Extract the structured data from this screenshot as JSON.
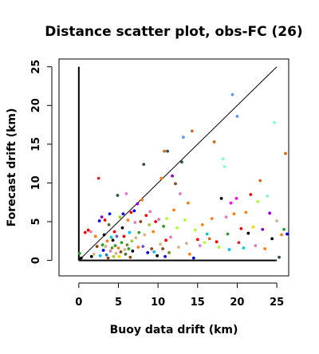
{
  "chart_data": {
    "type": "scatter",
    "title": "Distance scatter plot, obs-FC (26)",
    "xlabel": "Buoy data drift (km)",
    "ylabel": "Forecast drift (km)",
    "xlim": [
      -2.5,
      26.5
    ],
    "ylim": [
      -2,
      26
    ],
    "x_ticks": [
      "0",
      "5",
      "10",
      "15",
      "20",
      "25"
    ],
    "y_ticks": [
      "0",
      "5",
      "10",
      "15",
      "20",
      "25"
    ],
    "x_tick_values": [
      0,
      5,
      10,
      15,
      20,
      25
    ],
    "y_tick_values": [
      0,
      5,
      10,
      15,
      20,
      25
    ],
    "grid": false,
    "reference_lines": [
      {
        "name": "1:1 line",
        "x": [
          0,
          25
        ],
        "y": [
          0,
          25
        ],
        "color": "#000000"
      },
      {
        "name": "y axis",
        "x": [
          0,
          0
        ],
        "y": [
          0,
          25
        ],
        "color": "#000000"
      },
      {
        "name": "x axis",
        "x": [
          0,
          25
        ],
        "y": [
          0,
          0
        ],
        "color": "#000000"
      }
    ],
    "points": [
      {
        "x": 0.1,
        "y": 0.9,
        "color": "#2ca02c"
      },
      {
        "x": 0.3,
        "y": 0.3,
        "color": "#000000"
      },
      {
        "x": 0.8,
        "y": 3.6,
        "color": "#ff0000"
      },
      {
        "x": 1.2,
        "y": 3.9,
        "color": "#ff0000"
      },
      {
        "x": 1.5,
        "y": 3.7,
        "color": "#e377c2"
      },
      {
        "x": 1.6,
        "y": 0.5,
        "color": "#000000"
      },
      {
        "x": 1.9,
        "y": 0.8,
        "color": "#d2b48c"
      },
      {
        "x": 2.1,
        "y": 3.1,
        "color": "#ff7f0e"
      },
      {
        "x": 2.3,
        "y": 1.8,
        "color": "#8b4513"
      },
      {
        "x": 2.5,
        "y": 10.6,
        "color": "#d62728"
      },
      {
        "x": 2.6,
        "y": 5.1,
        "color": "#0000ff"
      },
      {
        "x": 2.7,
        "y": 0.6,
        "color": "#00bfff"
      },
      {
        "x": 2.9,
        "y": 5.6,
        "color": "#9400d3"
      },
      {
        "x": 3.0,
        "y": 2.0,
        "color": "#2ca02c"
      },
      {
        "x": 3.1,
        "y": 1.3,
        "color": "#0000ff"
      },
      {
        "x": 3.2,
        "y": 3.3,
        "color": "#000000"
      },
      {
        "x": 3.3,
        "y": 5.2,
        "color": "#ff0000"
      },
      {
        "x": 3.4,
        "y": 1.8,
        "color": "#d2b48c"
      },
      {
        "x": 3.5,
        "y": 0.7,
        "color": "#1f77b4"
      },
      {
        "x": 3.6,
        "y": 2.5,
        "color": "#ff7f0e"
      },
      {
        "x": 3.7,
        "y": 0.3,
        "color": "#8b4513"
      },
      {
        "x": 3.8,
        "y": 4.6,
        "color": "#556b2f"
      },
      {
        "x": 3.9,
        "y": 6.0,
        "color": "#0000ff"
      },
      {
        "x": 4.0,
        "y": 1.2,
        "color": "#e377c2"
      },
      {
        "x": 4.1,
        "y": 3.0,
        "color": "#00ced1"
      },
      {
        "x": 4.2,
        "y": 1.6,
        "color": "#6b8e23"
      },
      {
        "x": 4.3,
        "y": 2.6,
        "color": "#000000"
      },
      {
        "x": 4.4,
        "y": 0.5,
        "color": "#9acd32"
      },
      {
        "x": 4.5,
        "y": 3.7,
        "color": "#ff0000"
      },
      {
        "x": 4.6,
        "y": 1.9,
        "color": "#2ca02c"
      },
      {
        "x": 4.7,
        "y": 0.9,
        "color": "#d2b48c"
      },
      {
        "x": 4.8,
        "y": 3.1,
        "color": "#6a5acd"
      },
      {
        "x": 4.9,
        "y": 8.4,
        "color": "#2f4f4f"
      },
      {
        "x": 5.0,
        "y": 1.6,
        "color": "#ff7f0e"
      },
      {
        "x": 5.1,
        "y": 0.5,
        "color": "#ffd700"
      },
      {
        "x": 5.2,
        "y": 5.6,
        "color": "#9acd32"
      },
      {
        "x": 5.3,
        "y": 1.1,
        "color": "#8b4513"
      },
      {
        "x": 5.4,
        "y": 2.3,
        "color": "#2ca02c"
      },
      {
        "x": 5.5,
        "y": 4.2,
        "color": "#000000"
      },
      {
        "x": 5.6,
        "y": 6.0,
        "color": "#0000ff"
      },
      {
        "x": 5.7,
        "y": 3.1,
        "color": "#ff0000"
      },
      {
        "x": 5.8,
        "y": 1.4,
        "color": "#d2b48c"
      },
      {
        "x": 5.9,
        "y": 0.8,
        "color": "#556b2f"
      },
      {
        "x": 6.0,
        "y": 8.6,
        "color": "#e377c2"
      },
      {
        "x": 6.1,
        "y": 2.0,
        "color": "#6b8e23"
      },
      {
        "x": 6.2,
        "y": 5.2,
        "color": "#ff7f0e"
      },
      {
        "x": 6.3,
        "y": 1.5,
        "color": "#2ca02c"
      },
      {
        "x": 6.4,
        "y": 3.6,
        "color": "#00bfff"
      },
      {
        "x": 6.5,
        "y": 0.4,
        "color": "#8b4513"
      },
      {
        "x": 6.6,
        "y": 6.2,
        "color": "#ff0000"
      },
      {
        "x": 6.7,
        "y": 2.5,
        "color": "#9acd32"
      },
      {
        "x": 6.8,
        "y": 1.2,
        "color": "#000000"
      },
      {
        "x": 7.0,
        "y": 6.4,
        "color": "#0000ff"
      },
      {
        "x": 7.1,
        "y": 4.9,
        "color": "#e377c2"
      },
      {
        "x": 7.2,
        "y": 2.9,
        "color": "#d2b48c"
      },
      {
        "x": 7.4,
        "y": 7.3,
        "color": "#9400d3"
      },
      {
        "x": 7.5,
        "y": 1.7,
        "color": "#ff7f0e"
      },
      {
        "x": 7.6,
        "y": 3.6,
        "color": "#2ca02c"
      },
      {
        "x": 7.8,
        "y": 5.0,
        "color": "#8b4513"
      },
      {
        "x": 8.0,
        "y": 7.8,
        "color": "#ff7f0e"
      },
      {
        "x": 8.1,
        "y": 1.8,
        "color": "#6a5acd"
      },
      {
        "x": 8.2,
        "y": 12.4,
        "color": "#2f4f4f"
      },
      {
        "x": 8.3,
        "y": 3.3,
        "color": "#d2b48c"
      },
      {
        "x": 8.5,
        "y": 5.8,
        "color": "#ff0000"
      },
      {
        "x": 8.7,
        "y": 1.0,
        "color": "#0000ff"
      },
      {
        "x": 8.9,
        "y": 4.6,
        "color": "#9acd32"
      },
      {
        "x": 9.0,
        "y": 6.3,
        "color": "#e377c2"
      },
      {
        "x": 9.2,
        "y": 1.5,
        "color": "#8b4513"
      },
      {
        "x": 9.4,
        "y": 3.7,
        "color": "#ff7f0e"
      },
      {
        "x": 9.5,
        "y": 1.1,
        "color": "#00bfff"
      },
      {
        "x": 9.7,
        "y": 5.0,
        "color": "#ff0000"
      },
      {
        "x": 9.9,
        "y": 0.6,
        "color": "#000000"
      },
      {
        "x": 10.1,
        "y": 5.3,
        "color": "#e377c2"
      },
      {
        "x": 10.3,
        "y": 2.1,
        "color": "#d2b48c"
      },
      {
        "x": 10.4,
        "y": 10.6,
        "color": "#ff7f0e"
      },
      {
        "x": 10.6,
        "y": 1.5,
        "color": "#8b4513"
      },
      {
        "x": 10.7,
        "y": 4.4,
        "color": "#2ca02c"
      },
      {
        "x": 10.8,
        "y": 14.1,
        "color": "#d2691e"
      },
      {
        "x": 10.9,
        "y": 0.5,
        "color": "#0000ff"
      },
      {
        "x": 11.0,
        "y": 2.6,
        "color": "#ff0000"
      },
      {
        "x": 11.1,
        "y": 5.4,
        "color": "#adff2f"
      },
      {
        "x": 11.2,
        "y": 14.1,
        "color": "#2f4f4f"
      },
      {
        "x": 11.4,
        "y": 1.0,
        "color": "#6b8e23"
      },
      {
        "x": 11.6,
        "y": 3.0,
        "color": "#e377c2"
      },
      {
        "x": 11.8,
        "y": 10.9,
        "color": "#9400d3"
      },
      {
        "x": 12.0,
        "y": 6.5,
        "color": "#ff7f0e"
      },
      {
        "x": 12.2,
        "y": 9.9,
        "color": "#8b4513"
      },
      {
        "x": 12.4,
        "y": 4.2,
        "color": "#adff2f"
      },
      {
        "x": 12.6,
        "y": 1.7,
        "color": "#d2b48c"
      },
      {
        "x": 12.8,
        "y": 8.6,
        "color": "#e377c2"
      },
      {
        "x": 13.0,
        "y": 12.7,
        "color": "#2f4f4f"
      },
      {
        "x": 13.2,
        "y": 15.9,
        "color": "#6495ed"
      },
      {
        "x": 13.4,
        "y": 5.2,
        "color": "#adff2f"
      },
      {
        "x": 13.6,
        "y": 2.2,
        "color": "#d2b48c"
      },
      {
        "x": 13.8,
        "y": 7.4,
        "color": "#ff7f0e"
      },
      {
        "x": 14.0,
        "y": 0.8,
        "color": "#ff7f0e"
      },
      {
        "x": 14.3,
        "y": 16.7,
        "color": "#d2691e"
      },
      {
        "x": 14.5,
        "y": 0.3,
        "color": "#0000ff"
      },
      {
        "x": 14.7,
        "y": 3.9,
        "color": "#adff2f"
      },
      {
        "x": 15.0,
        "y": 2.7,
        "color": "#ff0000"
      },
      {
        "x": 15.3,
        "y": 1.9,
        "color": "#e377c2"
      },
      {
        "x": 15.6,
        "y": 4.6,
        "color": "#ff7f0e"
      },
      {
        "x": 15.9,
        "y": 2.3,
        "color": "#adff2f"
      },
      {
        "x": 16.2,
        "y": 3.4,
        "color": "#00ced1"
      },
      {
        "x": 16.5,
        "y": 2.8,
        "color": "#d2691e"
      },
      {
        "x": 16.8,
        "y": 5.4,
        "color": "#ff7f0e"
      },
      {
        "x": 17.1,
        "y": 15.3,
        "color": "#d2691e"
      },
      {
        "x": 17.4,
        "y": 2.4,
        "color": "#ff0000"
      },
      {
        "x": 17.7,
        "y": 1.7,
        "color": "#adff2f"
      },
      {
        "x": 18.0,
        "y": 8.0,
        "color": "#000000"
      },
      {
        "x": 18.2,
        "y": 13.1,
        "color": "#7fffd4"
      },
      {
        "x": 18.4,
        "y": 12.1,
        "color": "#7fffd4"
      },
      {
        "x": 18.6,
        "y": 5.6,
        "color": "#e377c2"
      },
      {
        "x": 18.8,
        "y": 3.4,
        "color": "#2ca02c"
      },
      {
        "x": 19.0,
        "y": 1.4,
        "color": "#00bfff"
      },
      {
        "x": 19.2,
        "y": 7.4,
        "color": "#ff00ff"
      },
      {
        "x": 19.4,
        "y": 21.4,
        "color": "#6495ed"
      },
      {
        "x": 19.6,
        "y": 6.0,
        "color": "#ff7f0e"
      },
      {
        "x": 19.9,
        "y": 8.0,
        "color": "#ff00ff"
      },
      {
        "x": 20.0,
        "y": 18.6,
        "color": "#6495ed"
      },
      {
        "x": 20.2,
        "y": 2.3,
        "color": "#d62728"
      },
      {
        "x": 20.5,
        "y": 4.1,
        "color": "#ff0000"
      },
      {
        "x": 20.8,
        "y": 1.6,
        "color": "#00ced1"
      },
      {
        "x": 21.1,
        "y": 6.2,
        "color": "#ff7f0e"
      },
      {
        "x": 21.4,
        "y": 3.5,
        "color": "#000000"
      },
      {
        "x": 21.7,
        "y": 8.5,
        "color": "#ff0000"
      },
      {
        "x": 22.0,
        "y": 4.3,
        "color": "#ffd700"
      },
      {
        "x": 22.3,
        "y": 1.9,
        "color": "#e377c2"
      },
      {
        "x": 22.6,
        "y": 7.6,
        "color": "#adff2f"
      },
      {
        "x": 22.9,
        "y": 10.3,
        "color": "#d2691e"
      },
      {
        "x": 23.2,
        "y": 4.0,
        "color": "#9400d3"
      },
      {
        "x": 23.5,
        "y": 1.5,
        "color": "#ff7f0e"
      },
      {
        "x": 23.8,
        "y": 8.3,
        "color": "#7fffd4"
      },
      {
        "x": 24.1,
        "y": 6.1,
        "color": "#9400d3"
      },
      {
        "x": 24.4,
        "y": 2.8,
        "color": "#000000"
      },
      {
        "x": 24.7,
        "y": 17.8,
        "color": "#7fffd4"
      },
      {
        "x": 25.0,
        "y": 5.1,
        "color": "#d2b48c"
      },
      {
        "x": 25.3,
        "y": 0.4,
        "color": "#2f4f4f"
      },
      {
        "x": 25.6,
        "y": 3.3,
        "color": "#ff7f0e"
      },
      {
        "x": 25.9,
        "y": 4.0,
        "color": "#2ca02c"
      },
      {
        "x": 26.1,
        "y": 13.8,
        "color": "#d2691e"
      },
      {
        "x": 26.3,
        "y": 3.4,
        "color": "#0000ff"
      }
    ]
  }
}
